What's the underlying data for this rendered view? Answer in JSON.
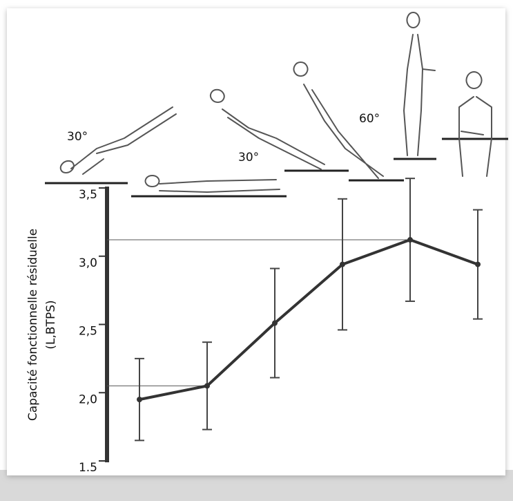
{
  "chart_data": {
    "type": "line",
    "y_label_lines": [
      "Capacité fonctionnelle résiduelle",
      "(L,BTPS)"
    ],
    "annotations": [
      "30°",
      "30°",
      "60°"
    ],
    "categories": [
      null,
      null,
      null,
      null,
      null,
      null
    ],
    "series": [
      {
        "color": "#333333",
        "values": [
          1.95,
          2.05,
          2.51,
          2.94,
          3.12,
          2.94
        ],
        "errors": [
          0.3,
          0.32,
          0.4,
          0.48,
          0.45,
          0.4
        ]
      }
    ],
    "ylim": [
      1.5,
      3.5
    ],
    "yticks": [
      1.5,
      {
        "value": 2.0,
        "label": "2,0"
      },
      {
        "value": 2.5,
        "label": "2,5"
      },
      {
        "value": 3.0,
        "label": "3,0"
      },
      {
        "value": 3.5,
        "label": "3,5"
      }
    ]
  }
}
